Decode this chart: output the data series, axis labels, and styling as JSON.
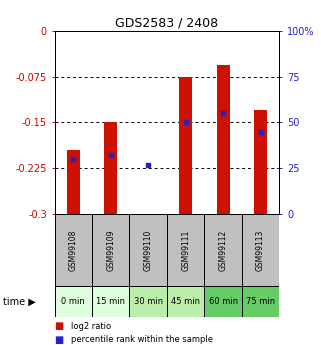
{
  "title": "GDS2583 / 2408",
  "samples": [
    "GSM99108",
    "GSM99109",
    "GSM99110",
    "GSM99111",
    "GSM99112",
    "GSM99113"
  ],
  "time_labels": [
    "0 min",
    "15 min",
    "30 min",
    "45 min",
    "60 min",
    "75 min"
  ],
  "log2_ratio": [
    -0.195,
    -0.15,
    -0.3,
    -0.075,
    -0.055,
    -0.13
  ],
  "percentile_rank": [
    30,
    32,
    27,
    50,
    55,
    45
  ],
  "ylim_left": [
    -0.3,
    0
  ],
  "ylim_right": [
    0,
    100
  ],
  "yticks_left": [
    0,
    -0.075,
    -0.15,
    -0.225,
    -0.3
  ],
  "yticks_right": [
    0,
    25,
    50,
    75,
    100
  ],
  "bar_color": "#cc1100",
  "dot_color": "#2222cc",
  "bg_color": "#ffffff",
  "gsm_bg": "#c0c0c0",
  "time_colors": [
    "#ddffdd",
    "#ddffdd",
    "#bbeeaa",
    "#bbeeaa",
    "#66cc66",
    "#66cc66"
  ],
  "bar_width": 0.35,
  "left_label_color": "#cc0000",
  "right_label_color": "#2222cc",
  "title_fontsize": 9,
  "tick_fontsize": 7,
  "gsm_fontsize": 5.5,
  "time_fontsize": 6
}
